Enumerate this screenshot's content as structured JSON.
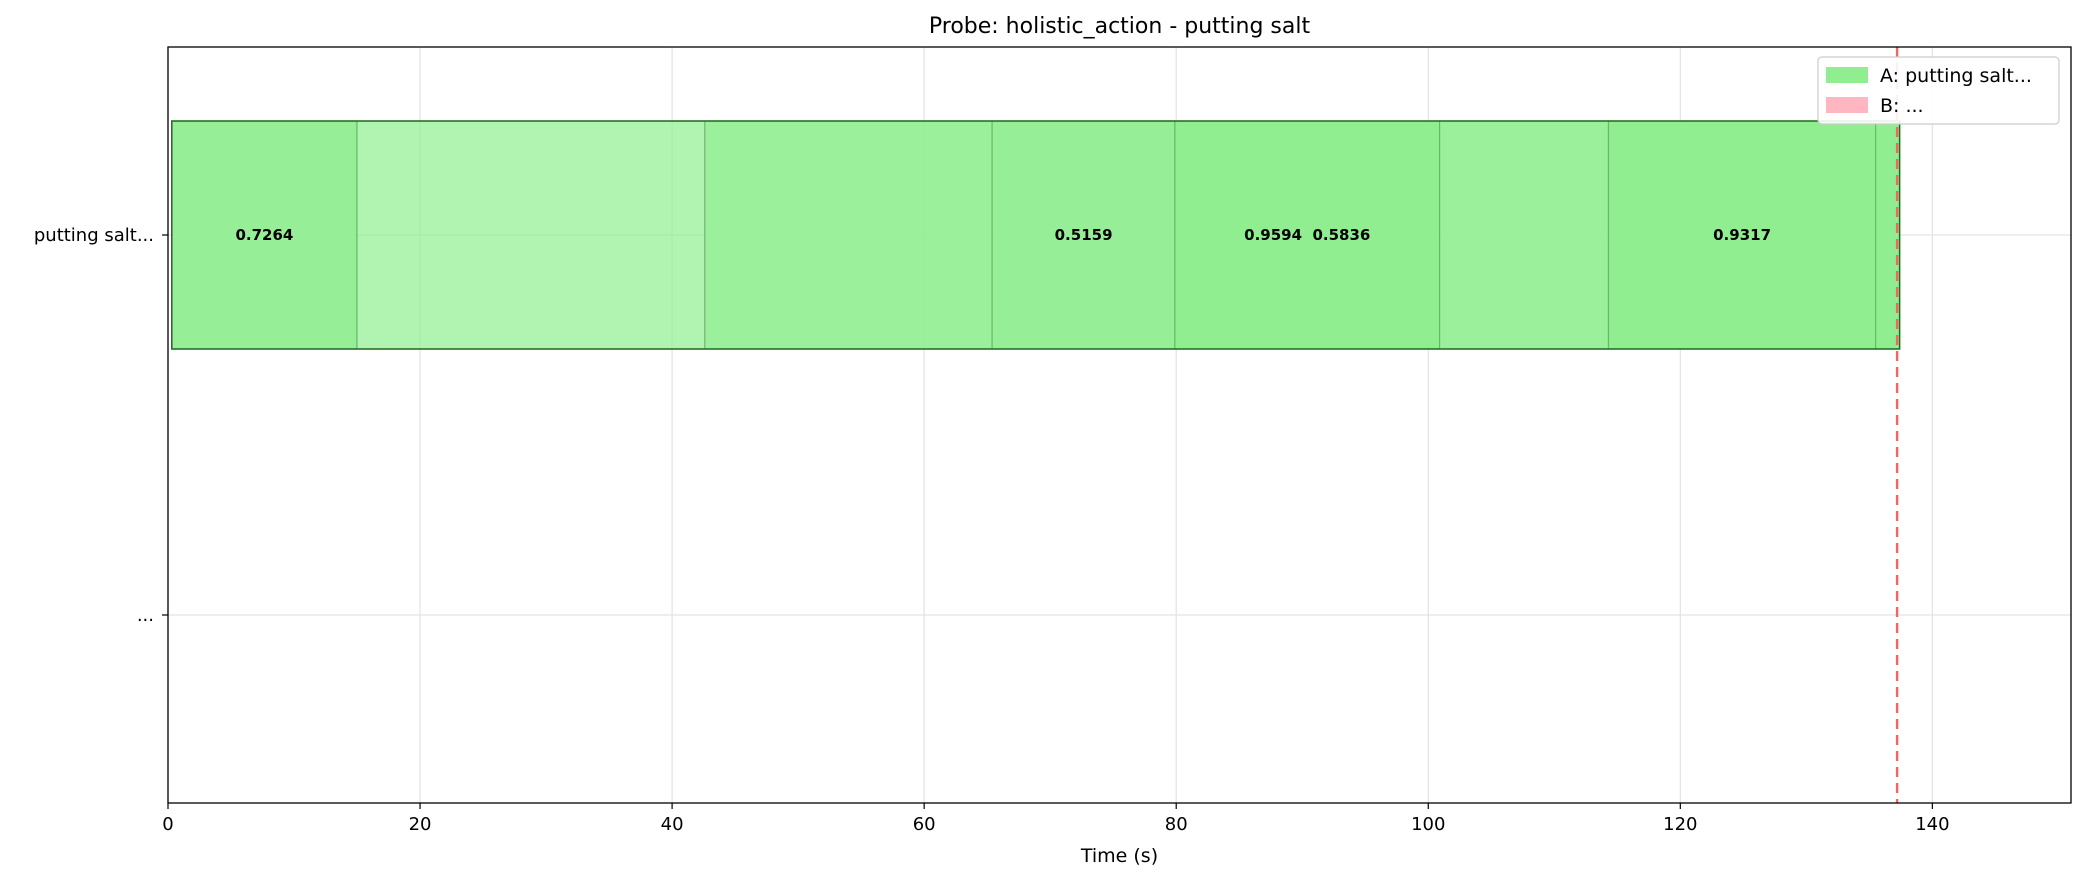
{
  "chart_data": {
    "type": "bar",
    "orientation": "horizontal-timeline",
    "title": "Probe: holistic_action - putting salt",
    "xlabel": "Time (s)",
    "ylabel": "",
    "xlim": [
      0,
      151
    ],
    "x_ticks": [
      0,
      20,
      40,
      60,
      80,
      100,
      120,
      140
    ],
    "y_categories": [
      "putting salt...",
      "..."
    ],
    "grid": true,
    "legend_position": "top-right",
    "legend": [
      {
        "label": "A: putting salt...",
        "color": "#90ee90"
      },
      {
        "label": "B: ...",
        "color": "#ffb6c1"
      }
    ],
    "series": [
      {
        "row": "putting salt...",
        "color": "#90ee90",
        "segments": [
          {
            "start": 0.3,
            "end": 15.0,
            "score": "0.7264",
            "opacity": 0.95
          },
          {
            "start": 15.0,
            "end": 42.6,
            "score": "",
            "opacity": 0.7
          },
          {
            "start": 42.6,
            "end": 65.4,
            "score": "",
            "opacity": 0.9
          },
          {
            "start": 65.4,
            "end": 79.9,
            "score": "0.5159",
            "opacity": 0.95
          },
          {
            "start": 79.9,
            "end": 100.9,
            "score": "0.9594  0.5836",
            "opacity": 1.0
          },
          {
            "start": 100.9,
            "end": 114.3,
            "score": "",
            "opacity": 0.9
          },
          {
            "start": 114.3,
            "end": 135.5,
            "score": "0.9317",
            "opacity": 1.0
          },
          {
            "start": 135.5,
            "end": 137.4,
            "score": "",
            "opacity": 1.0
          }
        ]
      },
      {
        "row": "...",
        "color": "#ffb6c1",
        "segments": []
      }
    ],
    "reference_line": {
      "x": 137.2,
      "color": "#ee6666",
      "style": "dashed"
    }
  }
}
